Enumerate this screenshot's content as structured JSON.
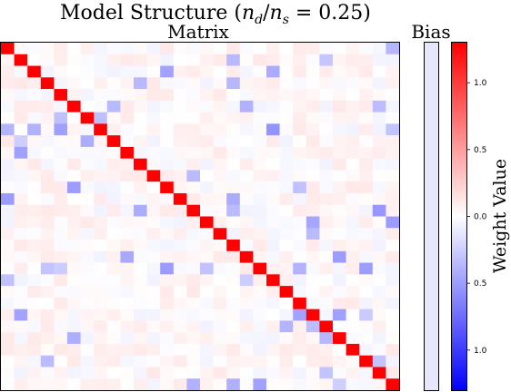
{
  "chart_data": [
    {
      "type": "heatmap",
      "title": "Model Structure (n_d/n_s = 0.25)",
      "subtitle": "Matrix",
      "size": 30,
      "diagonal_value": 1.0,
      "off_diagonal_range": [
        -0.3,
        0.1
      ],
      "grid": false,
      "note": "30x30 weight matrix; strong identity-like diagonal, small mostly-positive off-diagonal noise with sparse negative (blue) entries"
    },
    {
      "type": "heatmap",
      "subtitle": "Bias",
      "size": 30,
      "values_approx": -0.1
    },
    {
      "type": "colorbar",
      "label": "Weight Value",
      "ticks": [
        "1.0",
        "0.5",
        "0.0",
        "0.5",
        "1.0"
      ],
      "range": [
        -1.3,
        1.3
      ],
      "colors": {
        "low": "#0000ff",
        "mid": "#ffffff",
        "high": "#ff0000"
      }
    }
  ],
  "text": {
    "title": "Model Structure (",
    "title_math": "n",
    "title_sub_d": "d",
    "title_slash": "/",
    "title_sub_s": "s",
    "title_rest": " = 0.25)",
    "matrix_label": "Matrix",
    "bias_label": "Bias",
    "colorbar_label": "Weight Value"
  }
}
